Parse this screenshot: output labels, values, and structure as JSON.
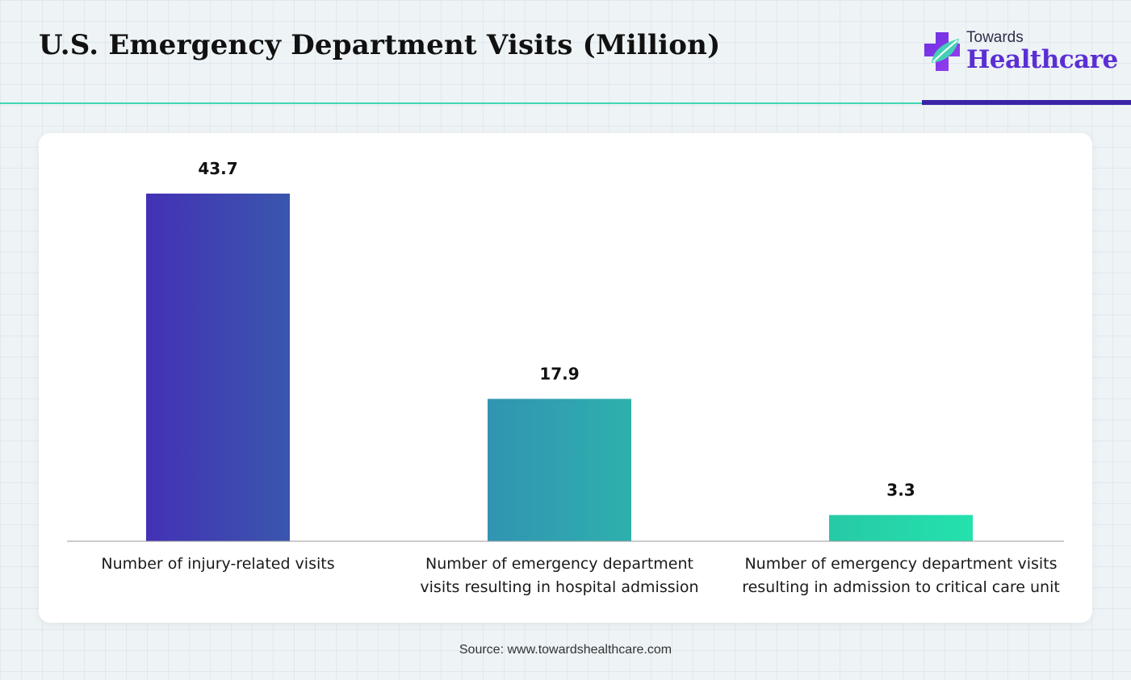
{
  "header": {
    "title": "U.S. Emergency Department Visits (Million)",
    "brand_small": "Towards",
    "brand_big": "Healthcare",
    "brand_icon": "medical-cross-leaf-icon",
    "accent_teal": "#3fd7b4",
    "accent_purple": "#3a23a6"
  },
  "chart_data": {
    "type": "bar",
    "categories": [
      [
        "Number of injury-related visits"
      ],
      [
        "Number of emergency department",
        "visits resulting in hospital admission"
      ],
      [
        "Number of emergency department visits",
        "resulting in admission to critical care unit"
      ]
    ],
    "values": [
      43.7,
      17.9,
      3.3
    ],
    "value_labels": [
      "43.7",
      "17.9",
      "3.3"
    ],
    "ylim": [
      0,
      43.7
    ],
    "grid": false,
    "bar_colors": [
      [
        "#4331b5",
        "#3a56ad"
      ],
      [
        "#3194b2",
        "#2eb0ad"
      ],
      [
        "#27c9a6",
        "#24e2ad"
      ]
    ]
  },
  "footer": {
    "source": "Source: www.towardshealthcare.com"
  }
}
